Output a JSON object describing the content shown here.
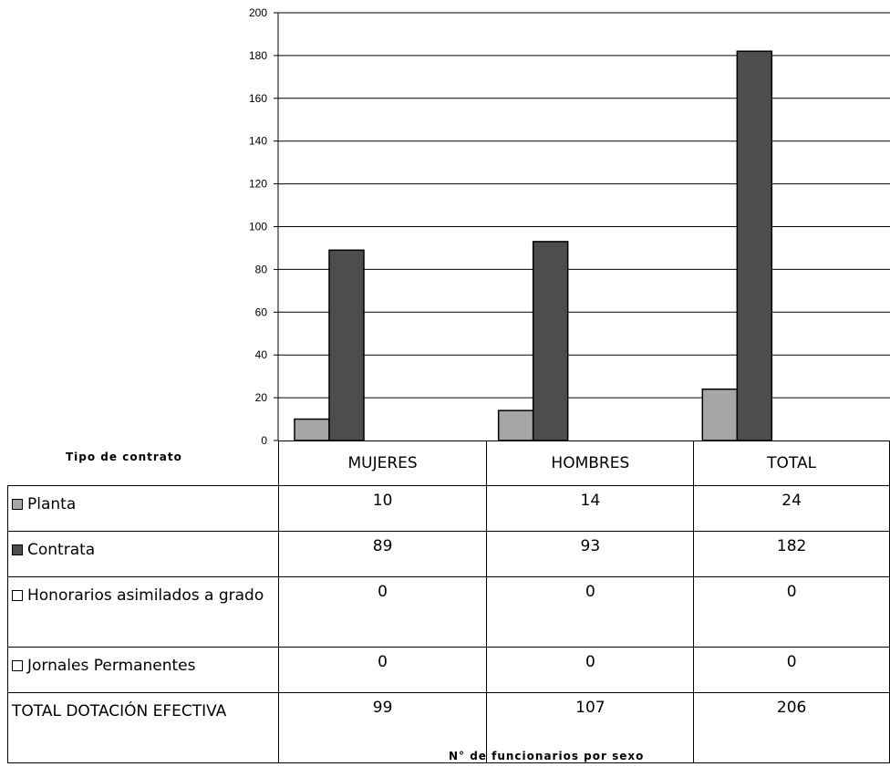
{
  "chart_data": {
    "type": "bar",
    "categories": [
      "MUJERES",
      "HOMBRES",
      "TOTAL"
    ],
    "series": [
      {
        "name": "Planta",
        "values": [
          10,
          14,
          24
        ],
        "color": "#a6a6a6",
        "plotted": true
      },
      {
        "name": "Contrata",
        "values": [
          89,
          93,
          182
        ],
        "color": "#4d4d4d",
        "plotted": true
      },
      {
        "name": "Honorarios asimilados a grado",
        "values": [
          0,
          0,
          0
        ],
        "color": "#ffffff",
        "plotted": true
      },
      {
        "name": "Jornales Permanentes",
        "values": [
          0,
          0,
          0
        ],
        "color": "#ffffff",
        "plotted": false
      }
    ],
    "summary_row": {
      "name": "TOTAL DOTACIÓN EFECTIVA",
      "values": [
        99,
        107,
        206
      ]
    },
    "legend_title": "Tipo de contrato",
    "xlabel": "N° de funcionarios por sexo",
    "ylabel": "",
    "ylim": [
      0,
      200
    ],
    "yticks": [
      0,
      20,
      40,
      60,
      80,
      100,
      120,
      140,
      160,
      180,
      200
    ],
    "grid": true,
    "legend": "data-table-left"
  }
}
